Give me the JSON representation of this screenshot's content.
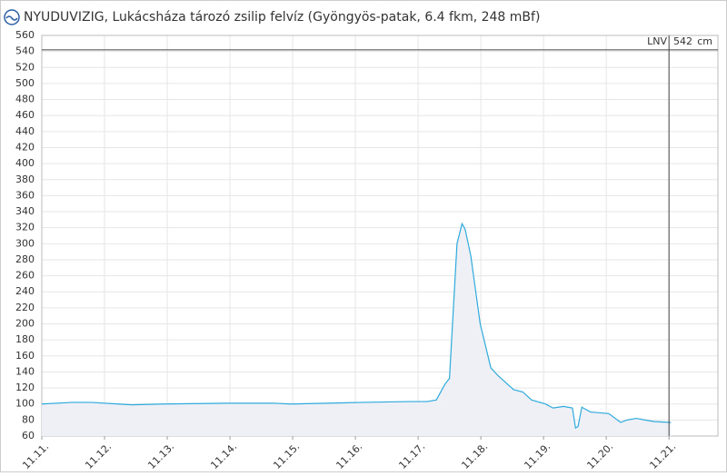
{
  "chart_data": {
    "type": "area",
    "title": "NYUDUVIZIG, Lukácsháza tározó zsilip felvíz (Gyöngyös-patak, 6.4 fkm, 248 mBf)",
    "x": [
      11.0,
      11.49,
      11.78,
      12.22,
      12.43,
      12.94,
      13.96,
      14.68,
      14.97,
      15.55,
      16.13,
      16.86,
      17.14,
      17.29,
      17.43,
      17.5,
      17.62,
      17.7,
      17.75,
      17.84,
      17.99,
      18.16,
      18.28,
      18.38,
      18.52,
      18.67,
      18.81,
      19.03,
      19.15,
      19.32,
      19.46,
      19.51,
      19.55,
      19.61,
      19.75,
      20.04,
      20.23,
      20.33,
      20.48,
      20.62,
      20.77,
      21.03
    ],
    "series": [
      {
        "name": "felvíz",
        "color": "#2eaadc",
        "values": [
          100,
          102,
          102,
          100,
          99,
          100,
          101,
          101,
          100,
          101,
          102,
          103,
          103,
          105,
          125,
          132,
          300,
          325,
          318,
          285,
          200,
          145,
          135,
          128,
          118,
          115,
          105,
          100,
          95,
          97,
          95,
          70,
          72,
          96,
          90,
          88,
          77,
          80,
          82,
          80,
          78,
          77
        ]
      }
    ],
    "area_color": "#eef0f5",
    "xlim": [
      11,
      21.78
    ],
    "xticks": [
      {
        "value": 11,
        "label": "11.11."
      },
      {
        "value": 12,
        "label": "11.12."
      },
      {
        "value": 13,
        "label": "11.13."
      },
      {
        "value": 14,
        "label": "11.14."
      },
      {
        "value": 15,
        "label": "11.15."
      },
      {
        "value": 16,
        "label": "11.16."
      },
      {
        "value": 17,
        "label": "11.17."
      },
      {
        "value": 18,
        "label": "11.18."
      },
      {
        "value": 19,
        "label": "11.19."
      },
      {
        "value": 20,
        "label": "11.20."
      },
      {
        "value": 21,
        "label": "11.21."
      }
    ],
    "ylim": [
      60,
      560
    ],
    "yticks": [
      60,
      80,
      100,
      120,
      140,
      160,
      180,
      200,
      220,
      240,
      260,
      280,
      300,
      320,
      340,
      360,
      380,
      400,
      420,
      440,
      460,
      480,
      500,
      520,
      540,
      560
    ],
    "grid": true,
    "vline_x": 21,
    "thresholds": [
      {
        "label": "LNV",
        "value": 542,
        "unit": "cm"
      }
    ]
  }
}
